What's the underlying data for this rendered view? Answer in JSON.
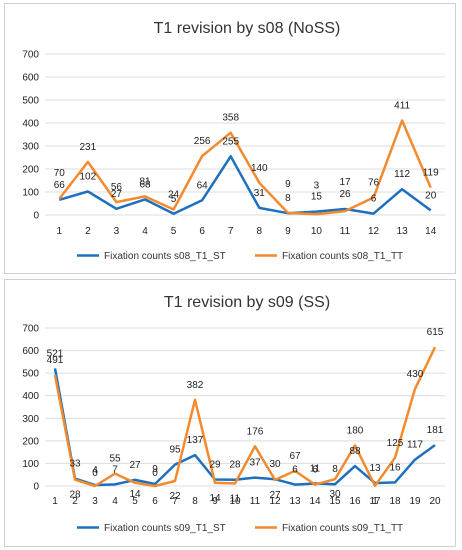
{
  "chart_data": [
    {
      "type": "line",
      "title": "T1 revision by s08 (NoSS)",
      "categories": [
        "1",
        "2",
        "3",
        "4",
        "5",
        "6",
        "7",
        "8",
        "9",
        "10",
        "11",
        "12",
        "13",
        "14"
      ],
      "ylim": [
        0,
        700
      ],
      "yticks": [
        "0",
        "100",
        "200",
        "300",
        "400",
        "500",
        "600",
        "700"
      ],
      "grid": true,
      "legend": "bottom",
      "series": [
        {
          "name": "Fixation counts s08_T1_ST",
          "color": "#1f6fbf",
          "values": [
            66,
            102,
            27,
            68,
            5,
            64,
            255,
            31,
            8,
            15,
            26,
            6,
            112,
            20
          ]
        },
        {
          "name": "Fixation counts s08_T1_TT",
          "color": "#f28a2e",
          "values": [
            70,
            231,
            56,
            81,
            24,
            256,
            358,
            140,
            9,
            3,
            17,
            76,
            411,
            119
          ]
        }
      ]
    },
    {
      "type": "line",
      "title": "T1 revision by s09 (SS)",
      "categories": [
        "1",
        "2",
        "3",
        "4",
        "5",
        "6",
        "7",
        "8",
        "9",
        "10",
        "11",
        "12",
        "13",
        "14",
        "15",
        "16",
        "17",
        "18",
        "19",
        "20"
      ],
      "ylim": [
        0,
        700
      ],
      "yticks": [
        "0",
        "100",
        "200",
        "300",
        "400",
        "500",
        "600",
        "700"
      ],
      "grid": true,
      "legend": "bottom",
      "series": [
        {
          "name": "Fixation counts s09_T1_ST",
          "color": "#1f6fbf",
          "values": [
            521,
            33,
            4,
            7,
            27,
            9,
            95,
            137,
            29,
            28,
            37,
            30,
            6,
            11,
            8,
            88,
            13,
            16,
            117,
            181
          ]
        },
        {
          "name": "Fixation counts s09_T1_TT",
          "color": "#f28a2e",
          "values": [
            491,
            28,
            0,
            55,
            14,
            0,
            22,
            382,
            14,
            11,
            176,
            27,
            67,
            6,
            30,
            180,
            1,
            125,
            430,
            615
          ]
        }
      ]
    }
  ]
}
